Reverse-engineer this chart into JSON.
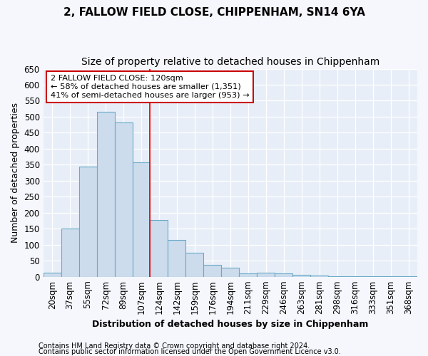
{
  "title1": "2, FALLOW FIELD CLOSE, CHIPPENHAM, SN14 6YA",
  "title2": "Size of property relative to detached houses in Chippenham",
  "xlabel": "Distribution of detached houses by size in Chippenham",
  "ylabel": "Number of detached properties",
  "categories": [
    "20sqm",
    "37sqm",
    "55sqm",
    "72sqm",
    "89sqm",
    "107sqm",
    "124sqm",
    "142sqm",
    "159sqm",
    "176sqm",
    "194sqm",
    "211sqm",
    "229sqm",
    "246sqm",
    "263sqm",
    "281sqm",
    "298sqm",
    "316sqm",
    "333sqm",
    "351sqm",
    "368sqm"
  ],
  "values": [
    12,
    150,
    345,
    515,
    483,
    358,
    178,
    115,
    75,
    38,
    28,
    10,
    13,
    11,
    6,
    3,
    2,
    1,
    1,
    1,
    1
  ],
  "bar_color": "#ccdcec",
  "bar_edge_color": "#6aaac8",
  "red_line_x": 6,
  "annotation_text_line1": "2 FALLOW FIELD CLOSE: 120sqm",
  "annotation_text_line2": "← 58% of detached houses are smaller (1,351)",
  "annotation_text_line3": "41% of semi-detached houses are larger (953) →",
  "annotation_box_color": "#ffffff",
  "annotation_box_edge": "#cc0000",
  "ylim": [
    0,
    650
  ],
  "yticks": [
    0,
    50,
    100,
    150,
    200,
    250,
    300,
    350,
    400,
    450,
    500,
    550,
    600,
    650
  ],
  "footer1": "Contains HM Land Registry data © Crown copyright and database right 2024.",
  "footer2": "Contains public sector information licensed under the Open Government Licence v3.0.",
  "plot_bg_color": "#e8eef8",
  "fig_bg_color": "#f5f7fc",
  "grid_color": "#ffffff",
  "title1_fontsize": 11,
  "title2_fontsize": 10,
  "xlabel_fontsize": 9,
  "ylabel_fontsize": 9,
  "tick_fontsize": 8.5,
  "footer_fontsize": 7
}
